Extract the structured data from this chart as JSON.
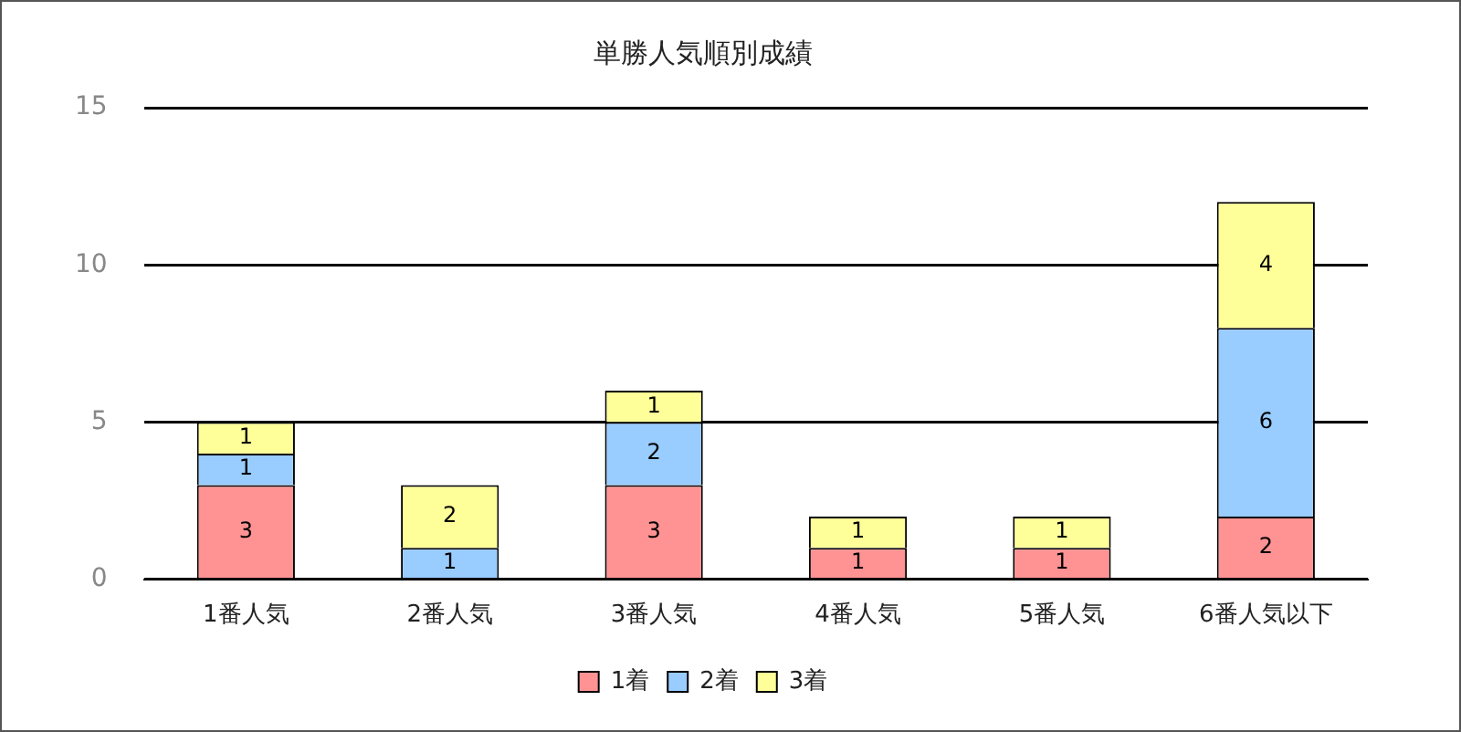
{
  "chart_data": {
    "type": "bar",
    "title": "単勝人気順別成績",
    "categories": [
      "1番人気",
      "2番人気",
      "3番人気",
      "4番人気",
      "5番人気",
      "6番人気以下"
    ],
    "series": [
      {
        "name": "1着",
        "color": "#ff9393",
        "values": [
          3,
          0,
          3,
          1,
          1,
          2
        ],
        "value_labels": [
          "3",
          null,
          "3",
          "1",
          "1",
          "2"
        ]
      },
      {
        "name": "2着",
        "color": "#99ccff",
        "values": [
          1,
          1,
          2,
          0,
          0,
          6
        ],
        "value_labels": [
          "1",
          "1",
          "2",
          null,
          null,
          "6"
        ]
      },
      {
        "name": "3着",
        "color": "#ffff99",
        "values": [
          1,
          2,
          1,
          1,
          1,
          4
        ],
        "value_labels": [
          "1",
          "2",
          "1",
          "1",
          "1",
          "4"
        ]
      }
    ],
    "stacked": true,
    "ylim": [
      0,
      15
    ],
    "yticks": [
      0,
      5,
      10,
      15
    ],
    "grid": "y",
    "legend": "bottom"
  }
}
